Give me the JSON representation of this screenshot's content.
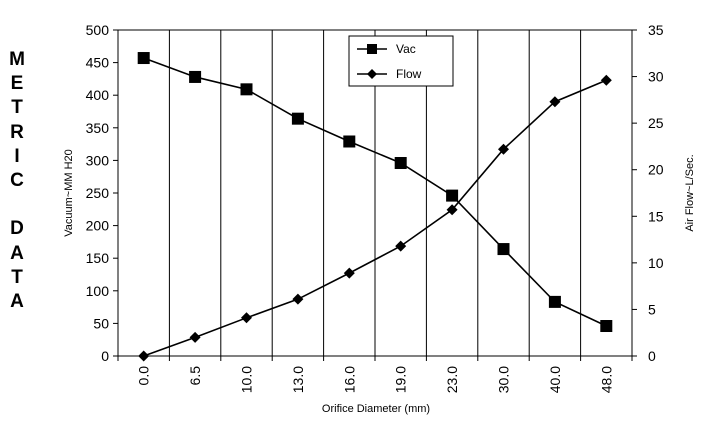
{
  "side_label": [
    "M",
    "E",
    "T",
    "R",
    "I",
    "C",
    "",
    "D",
    "A",
    "T",
    "A"
  ],
  "chart_data": {
    "type": "line",
    "title": "",
    "xlabel": "Orifice Diameter (mm)",
    "ylabel": "Vacuum~MM H20",
    "y2label": "Air Flow~L/Sec.",
    "categories": [
      "0.0",
      "6.5",
      "10.0",
      "13.0",
      "16.0",
      "19.0",
      "23.0",
      "30.0",
      "40.0",
      "48.0"
    ],
    "ylim": [
      0,
      500
    ],
    "yticks": [
      0,
      50,
      100,
      150,
      200,
      250,
      300,
      350,
      400,
      450,
      500
    ],
    "y2lim": [
      0,
      35
    ],
    "y2ticks": [
      0,
      5,
      10,
      15,
      20,
      25,
      30,
      35
    ],
    "grid": "vertical",
    "legend_position": "top-center",
    "series": [
      {
        "name": "Vac",
        "axis": "left",
        "marker": "square",
        "values": [
          457,
          428,
          409,
          364,
          329,
          296,
          246,
          164,
          83,
          46
        ]
      },
      {
        "name": "Flow",
        "axis": "right",
        "marker": "diamond",
        "values": [
          0,
          2.0,
          4.1,
          6.1,
          8.9,
          11.8,
          15.7,
          22.2,
          27.3,
          29.6
        ]
      }
    ]
  }
}
